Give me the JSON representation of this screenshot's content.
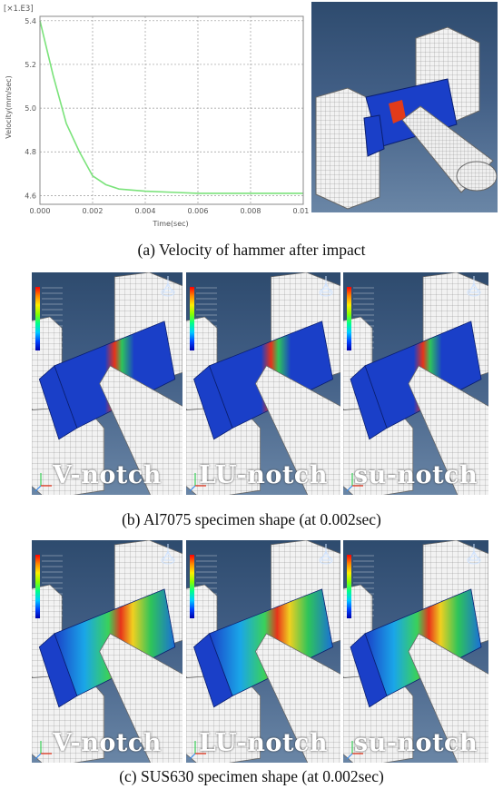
{
  "panel_a": {
    "exponent_label": "[×1.E3]",
    "y_axis_label": "Velocity(mm/sec)",
    "x_axis_label": "Time(sec)",
    "y_ticks": [
      "5.4",
      "5.2",
      "5.0",
      "4.8",
      "4.6"
    ],
    "x_ticks": [
      "0.000",
      "0.002",
      "0.004",
      "0.006",
      "0.008",
      "0.010"
    ],
    "caption": "(a) Velocity of hammer after impact"
  },
  "chart_data": {
    "type": "line",
    "xlabel": "Time(sec)",
    "ylabel": "Velocity(mm/sec)",
    "y_multiplier": "[×1.E3]",
    "xlim": [
      0.0,
      0.01
    ],
    "ylim": [
      4.56,
      5.42
    ],
    "grid": true,
    "line_color": "#7be37b",
    "series": [
      {
        "x": [
          0.0,
          0.0005,
          0.001,
          0.0015,
          0.002,
          0.0025,
          0.003,
          0.004,
          0.005,
          0.006,
          0.007,
          0.008,
          0.009,
          0.01
        ],
        "y": [
          5.4,
          5.15,
          4.93,
          4.8,
          4.69,
          4.65,
          4.63,
          4.62,
          4.615,
          4.61,
          4.61,
          4.61,
          4.61,
          4.61
        ]
      }
    ]
  },
  "panel_b": {
    "caption": "(b) Al7075 specimen shape (at 0.002sec)",
    "tiles": [
      {
        "label": "V-notch"
      },
      {
        "label": "LU-notch"
      },
      {
        "label": "su-notch"
      }
    ]
  },
  "panel_c": {
    "caption": "(c) SUS630 specimen shape (at 0.002sec)",
    "tiles": [
      {
        "label": "V-notch"
      },
      {
        "label": "LU-notch"
      },
      {
        "label": "su-notch"
      }
    ]
  },
  "legend_title": "S, Mises (Avg: 75%)",
  "colors": {
    "background_top": "#2e4b6e",
    "background_bottom": "#6a86a6",
    "specimen_blue": "#1a3fc8",
    "mesh_fill": "#f2f2f2",
    "mesh_line": "#888888"
  }
}
